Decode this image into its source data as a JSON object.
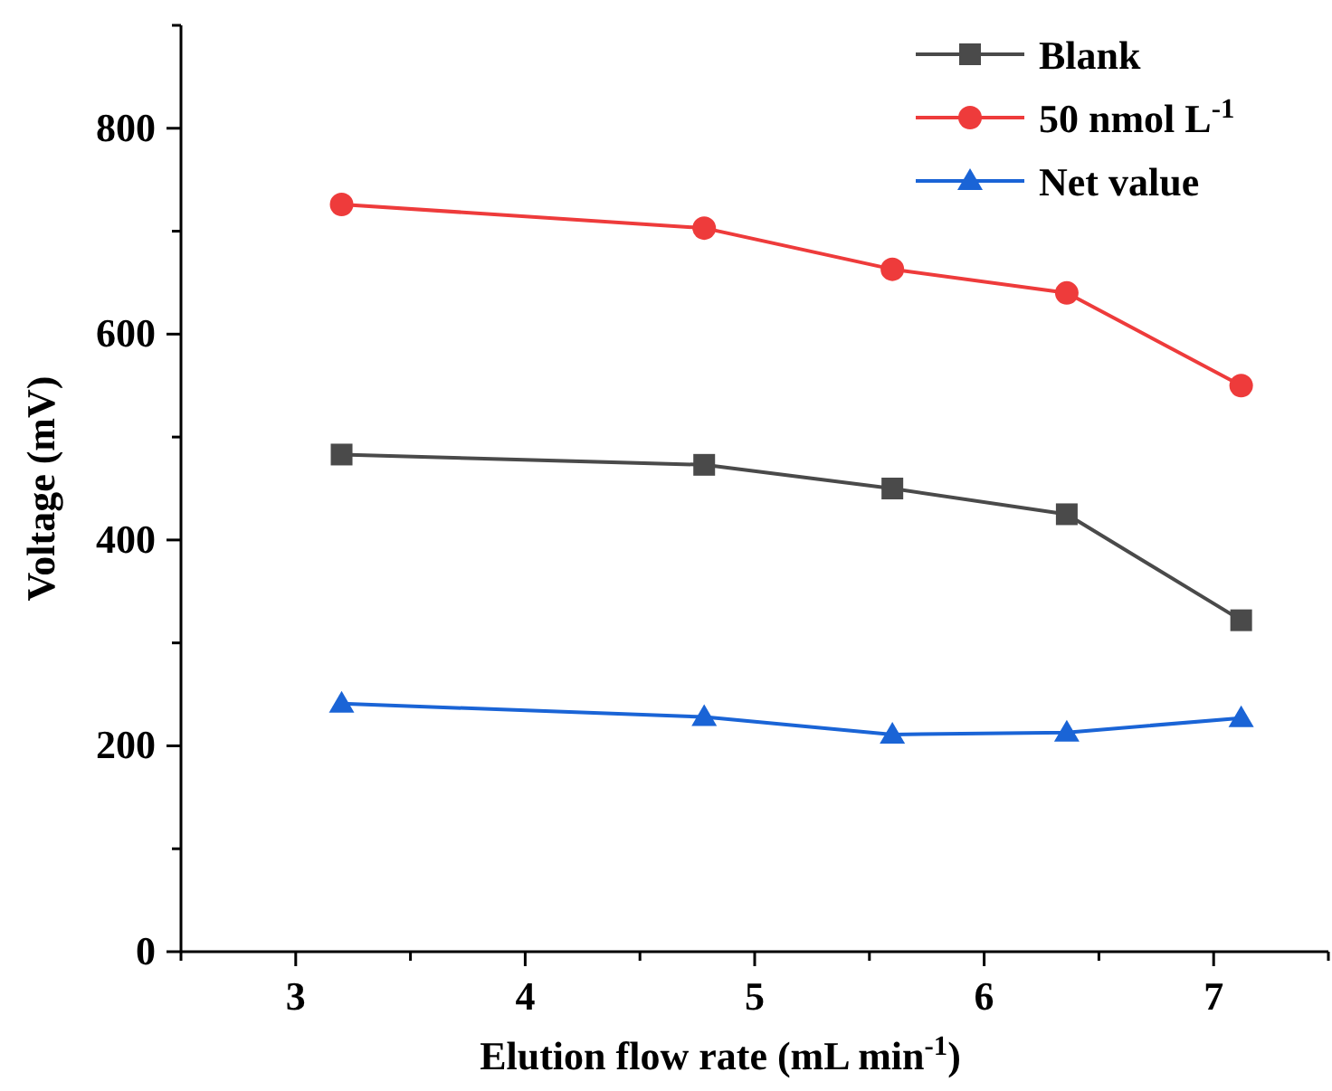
{
  "chart_data": {
    "type": "line",
    "xlabel": "Elution flow rate (mL min$^{-1}$)",
    "ylabel": "Voltage (mV)",
    "x": [
      3.2,
      4.78,
      5.6,
      6.36,
      7.12
    ],
    "xlim": [
      2.5,
      7.5
    ],
    "xticks": [
      {
        "value": 2.5,
        "label": null
      },
      3,
      {
        "value": 3.5,
        "label": null
      },
      4,
      {
        "value": 4.5,
        "label": null
      },
      5,
      {
        "value": 5.5,
        "label": null
      },
      6,
      {
        "value": 6.5,
        "label": null
      },
      7,
      {
        "value": 7.5,
        "label": null
      }
    ],
    "ylim": [
      0,
      900
    ],
    "yticks": [
      0,
      {
        "value": 100,
        "label": null
      },
      200,
      {
        "value": 300,
        "label": null
      },
      400,
      {
        "value": 500,
        "label": null
      },
      600,
      {
        "value": 700,
        "label": null
      },
      800,
      {
        "value": 900,
        "label": null
      }
    ],
    "series": [
      {
        "name": "Blank",
        "color": "#4a4a4a",
        "marker": "square",
        "values": [
          483,
          473,
          450,
          425,
          322
        ]
      },
      {
        "name": "50 nmol L$^{-1}$",
        "color": "#ee3b3b",
        "marker": "circle",
        "values": [
          726,
          703,
          663,
          640,
          550
        ]
      },
      {
        "name": "Net value",
        "color": "#1a64d6",
        "marker": "triangle",
        "values": [
          241,
          228,
          211,
          213,
          227
        ]
      }
    ],
    "legend": "top right",
    "grid": false,
    "line_style": "solid"
  }
}
